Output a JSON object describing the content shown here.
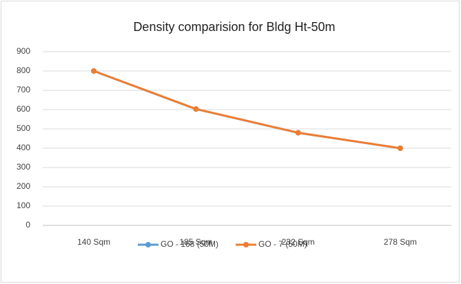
{
  "chart_data": {
    "type": "line",
    "title": "Density comparision for Bldg Ht-50m",
    "categories": [
      "140 Sqm",
      "185 Sqm",
      "232 Sqm",
      "278 Sqm"
    ],
    "series": [
      {
        "name": "GO - 168 (50M)",
        "color": "#5b9bd5",
        "values": [
          800,
          603,
          480,
          400
        ]
      },
      {
        "name": "GO - 7 (50M)",
        "color": "#ed7d31",
        "values": [
          800,
          603,
          480,
          400
        ]
      }
    ],
    "ylim": [
      0,
      900
    ],
    "yticks": [
      0,
      100,
      200,
      300,
      400,
      500,
      600,
      700,
      800,
      900
    ],
    "grid": true,
    "legend": "bottom"
  }
}
